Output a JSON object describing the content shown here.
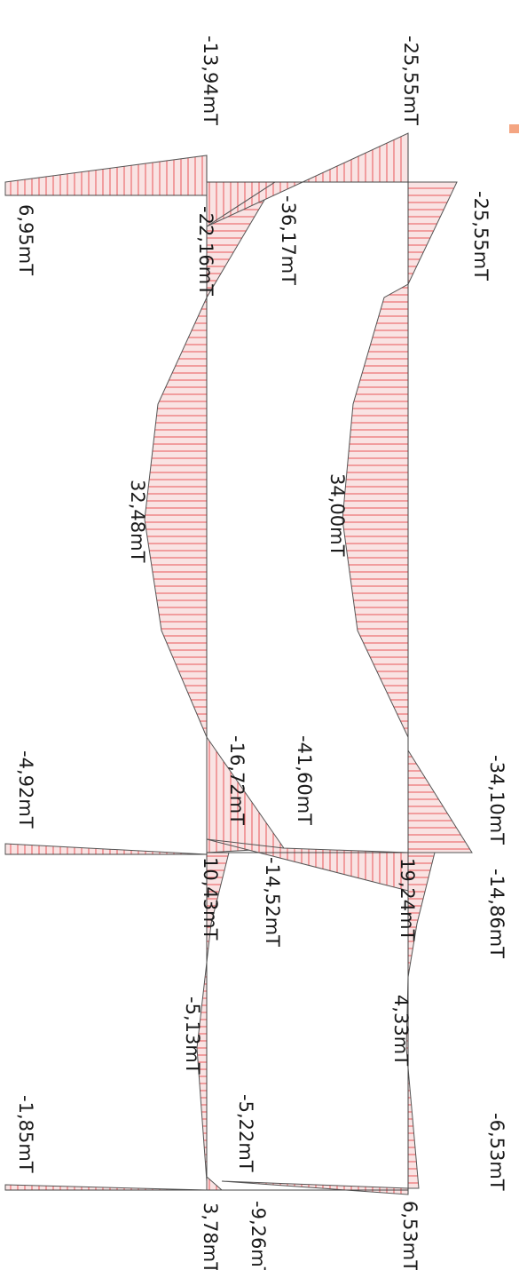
{
  "colors": {
    "fill": "#f7d4d4",
    "hatch": "#e8474a",
    "outline": "#555555",
    "axis": "#444444",
    "accent": "#f4a582"
  },
  "diagram": {
    "labels": [
      {
        "id": "m1",
        "text": "-13,94mT"
      },
      {
        "id": "m2",
        "text": "-25,55mT"
      },
      {
        "id": "m3",
        "text": "-25,55mT"
      },
      {
        "id": "m4",
        "text": "6,95mT"
      },
      {
        "id": "m5",
        "text": "-22,16mT"
      },
      {
        "id": "m6",
        "text": "-36,17mT"
      },
      {
        "id": "m7",
        "text": "32,48mT"
      },
      {
        "id": "m8",
        "text": "34,00mT"
      },
      {
        "id": "m9",
        "text": "-4,92mT"
      },
      {
        "id": "m10",
        "text": "-16,72mT"
      },
      {
        "id": "m11",
        "text": "-41,60mT"
      },
      {
        "id": "m12",
        "text": "-34,10mT"
      },
      {
        "id": "m13",
        "text": "10,43mT"
      },
      {
        "id": "m14",
        "text": "-14,52mT"
      },
      {
        "id": "m15",
        "text": "19,24mT"
      },
      {
        "id": "m16",
        "text": "-14,86mT"
      },
      {
        "id": "m17",
        "text": "-5,13mT"
      },
      {
        "id": "m18",
        "text": "4,33mT"
      },
      {
        "id": "m19",
        "text": "-1,85mT"
      },
      {
        "id": "m20",
        "text": "-5,22mT"
      },
      {
        "id": "m21",
        "text": "-6,53mT"
      },
      {
        "id": "m22",
        "text": "3,78mT"
      },
      {
        "id": "m23",
        "text": "-9,26mT"
      },
      {
        "id": "m24",
        "text": "6,53mT"
      }
    ]
  }
}
